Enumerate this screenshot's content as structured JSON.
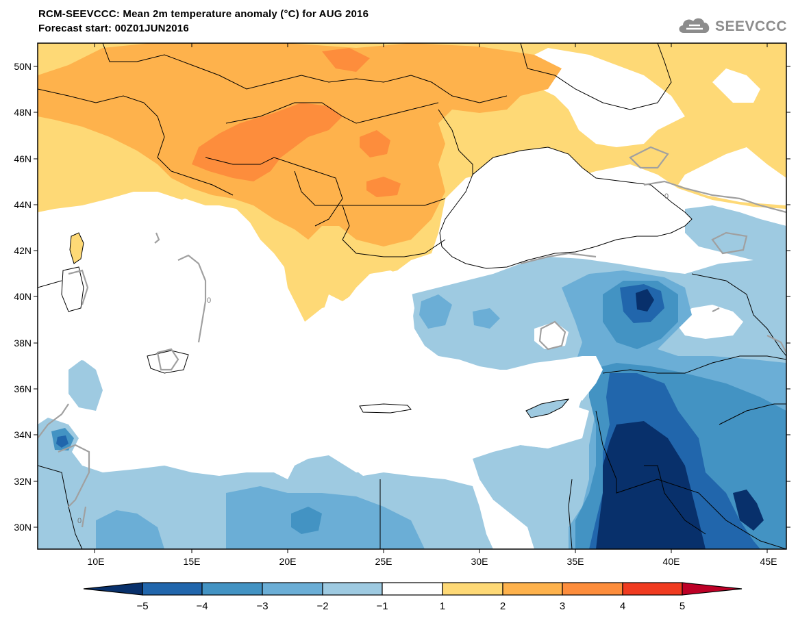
{
  "header": {
    "title_line1": "RCM-SEEVCCC: Mean 2m temperature anomaly (°C) for AUG 2016",
    "title_line2": "Forecast start: 00Z01JUN2016",
    "logo_text": "SEEVCCC",
    "logo_icon": "cloud-icon"
  },
  "map": {
    "lon_labels": [
      "10E",
      "15E",
      "20E",
      "25E",
      "30E",
      "35E",
      "40E",
      "45E"
    ],
    "lat_labels": [
      "50N",
      "48N",
      "46N",
      "44N",
      "42N",
      "40N",
      "38N",
      "36N",
      "34N",
      "32N",
      "30N"
    ],
    "contour_label": "0"
  },
  "colorbar": {
    "tick_labels": [
      "−5",
      "−4",
      "−3",
      "−2",
      "−1",
      "1",
      "2",
      "3",
      "4",
      "5"
    ],
    "colors": [
      "#08306b",
      "#2166ac",
      "#4393c3",
      "#6baed6",
      "#9ecae1",
      "#ffffff",
      "#fed976",
      "#feb24c",
      "#fd8d3c",
      "#f03b20",
      "#bd0026"
    ]
  },
  "colors": {
    "neg1": "#9ecae1",
    "neg2": "#6baed6",
    "neg3": "#4393c3",
    "neg4": "#2166ac",
    "neg5": "#08306b",
    "pos1": "#fed976",
    "pos2": "#feb24c",
    "pos3": "#fd8d3c",
    "pos4": "#f03b20"
  }
}
